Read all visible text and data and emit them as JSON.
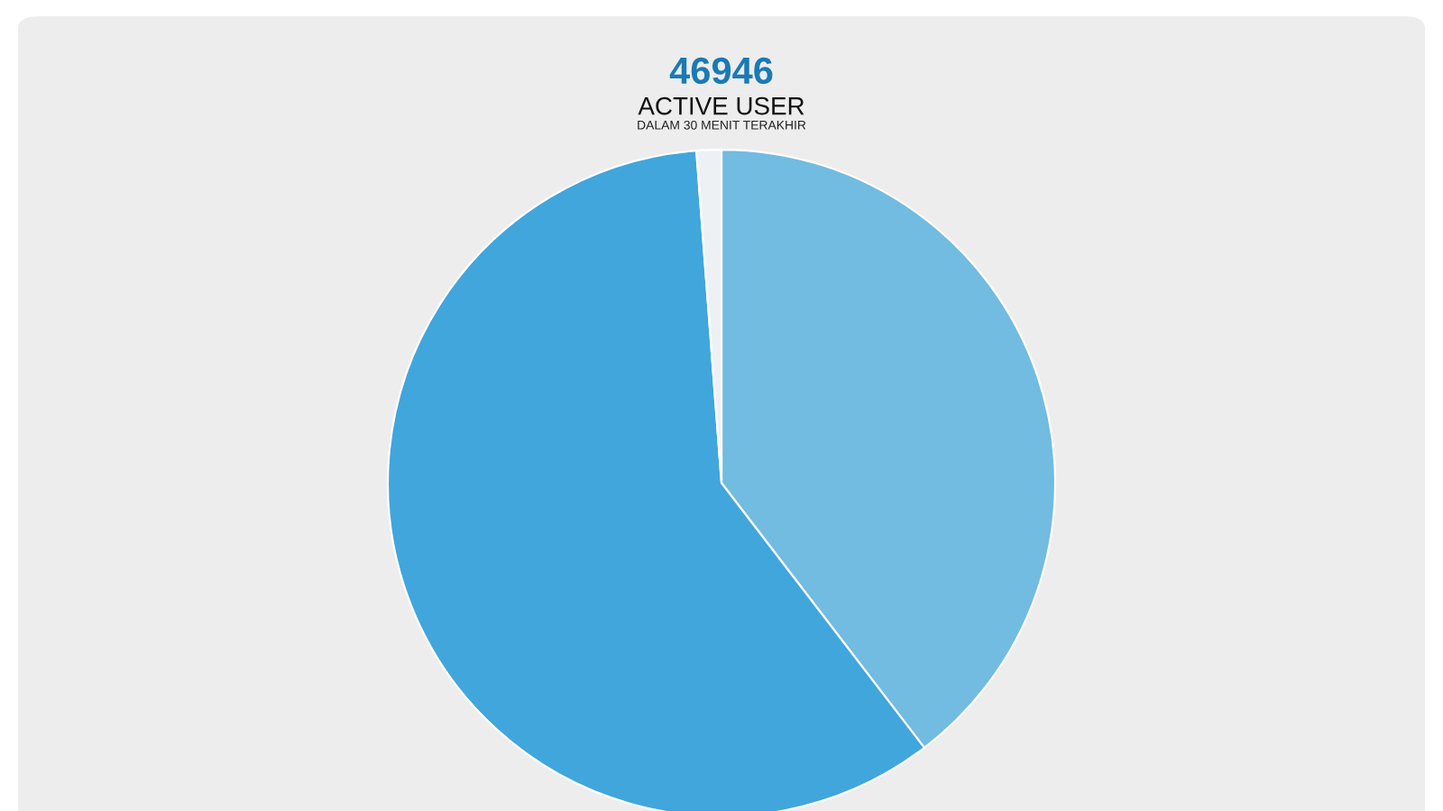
{
  "chart_data": {
    "type": "pie",
    "title": "46946",
    "subtitle": "ACTIVE USER",
    "annotations": [
      "DALAM 30 MENIT TERAKHIR"
    ],
    "categories": [
      null,
      null,
      null
    ],
    "values": [
      39.6,
      59.2,
      1.2
    ],
    "colors": [
      "#72bbe1",
      "#40a6dc",
      "#eef1f3"
    ]
  }
}
